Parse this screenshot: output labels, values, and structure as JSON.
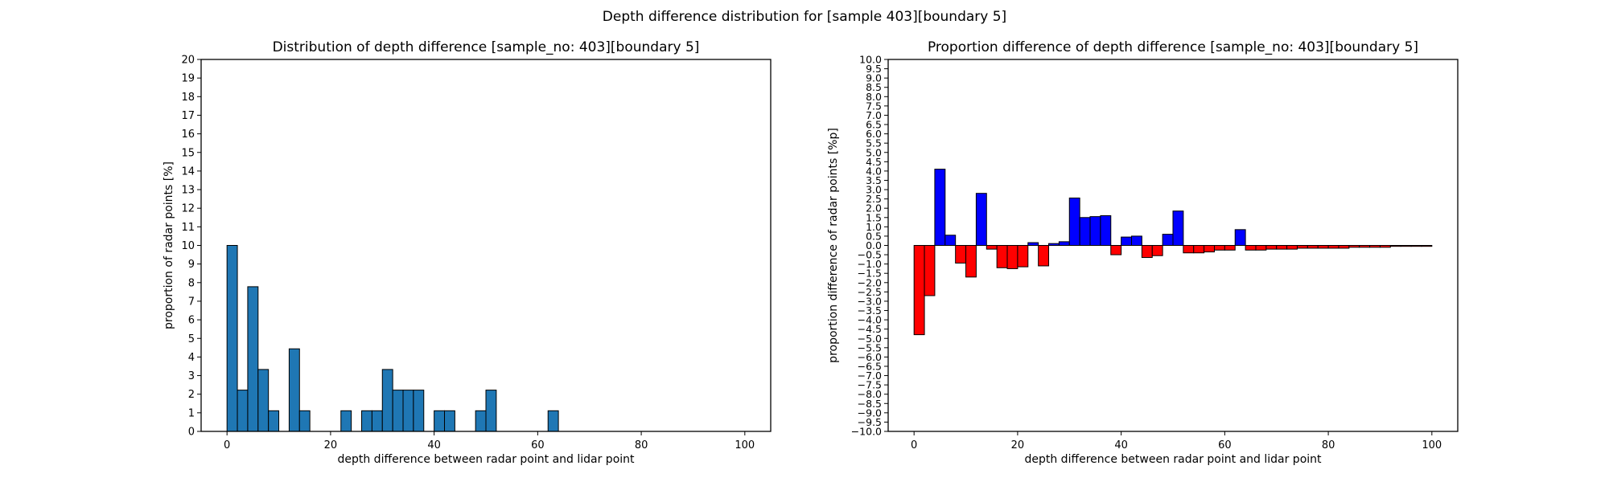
{
  "figure": {
    "suptitle": "Depth difference distribution for [sample 403][boundary 5]"
  },
  "chart_data": [
    {
      "type": "bar",
      "title": "Distribution of depth difference [sample_no: 403][boundary 5]",
      "xlabel": "depth difference between radar point and lidar point",
      "ylabel": "proportion of radar points [%]",
      "xlim": [
        -5,
        105
      ],
      "ylim": [
        0,
        20
      ],
      "xticks": [
        0,
        20,
        40,
        60,
        80,
        100
      ],
      "yticks": [
        0,
        1,
        2,
        3,
        4,
        5,
        6,
        7,
        8,
        9,
        10,
        11,
        12,
        13,
        14,
        15,
        16,
        17,
        18,
        19,
        20
      ],
      "bin_width": 2,
      "bar_color": "#1f77b4",
      "edge_color": "#000000",
      "bins_start": [
        0,
        2,
        4,
        6,
        8,
        10,
        12,
        14,
        16,
        18,
        20,
        22,
        24,
        26,
        28,
        30,
        32,
        34,
        36,
        38,
        40,
        42,
        44,
        46,
        48,
        50,
        52,
        54,
        56,
        58,
        60,
        62,
        64,
        66,
        68,
        70,
        72,
        74,
        76,
        78,
        80,
        82,
        84,
        86,
        88,
        90,
        92,
        94,
        96,
        98
      ],
      "values": [
        10,
        2.22,
        7.78,
        3.33,
        1.11,
        0,
        4.44,
        1.11,
        0,
        0,
        0,
        1.11,
        0,
        1.11,
        1.11,
        3.33,
        2.22,
        2.22,
        2.22,
        0,
        1.11,
        1.11,
        0,
        0,
        1.11,
        2.22,
        0,
        0,
        0,
        0,
        0,
        1.11,
        0,
        0,
        0,
        0,
        0,
        0,
        0,
        0,
        0,
        0,
        0,
        0,
        0,
        0,
        0,
        0,
        0,
        0
      ],
      "grid": false
    },
    {
      "type": "bar",
      "title": "Proportion difference of depth difference [sample_no: 403][boundary 5]",
      "xlabel": "depth difference between radar point and lidar point",
      "ylabel": "proportion difference of radar points [%p]",
      "xlim": [
        -5,
        105
      ],
      "ylim": [
        -10,
        10
      ],
      "xticks": [
        0,
        20,
        40,
        60,
        80,
        100
      ],
      "yticks": [
        -10,
        -9.5,
        -9,
        -8.5,
        -8,
        -7.5,
        -7,
        -6.5,
        -6,
        -5.5,
        -5,
        -4.5,
        -4,
        -3.5,
        -3,
        -2.5,
        -2,
        -1.5,
        -1,
        -0.5,
        0,
        0.5,
        1,
        1.5,
        2,
        2.5,
        3,
        3.5,
        4,
        4.5,
        5,
        5.5,
        6,
        6.5,
        7,
        7.5,
        8,
        8.5,
        9,
        9.5,
        10
      ],
      "bin_width": 2,
      "positive_color": "#0000ff",
      "negative_color": "#ff0000",
      "edge_color": "#000000",
      "bins_start": [
        0,
        2,
        4,
        6,
        8,
        10,
        12,
        14,
        16,
        18,
        20,
        22,
        24,
        26,
        28,
        30,
        32,
        34,
        36,
        38,
        40,
        42,
        44,
        46,
        48,
        50,
        52,
        54,
        56,
        58,
        60,
        62,
        64,
        66,
        68,
        70,
        72,
        74,
        76,
        78,
        80,
        82,
        84,
        86,
        88,
        90,
        92,
        94,
        96,
        98
      ],
      "values": [
        -4.8,
        -2.7,
        4.1,
        0.55,
        -0.95,
        -1.7,
        2.8,
        -0.2,
        -1.2,
        -1.25,
        -1.15,
        0.15,
        -1.1,
        0.1,
        0.2,
        2.55,
        1.5,
        1.55,
        1.6,
        -0.5,
        0.45,
        0.5,
        -0.65,
        -0.55,
        0.6,
        1.85,
        -0.4,
        -0.4,
        -0.35,
        -0.25,
        -0.25,
        0.85,
        -0.25,
        -0.25,
        -0.2,
        -0.2,
        -0.2,
        -0.15,
        -0.15,
        -0.15,
        -0.15,
        -0.15,
        -0.1,
        -0.1,
        -0.1,
        -0.1,
        -0.05,
        -0.05,
        -0.05,
        -0.05
      ],
      "grid": false
    }
  ]
}
